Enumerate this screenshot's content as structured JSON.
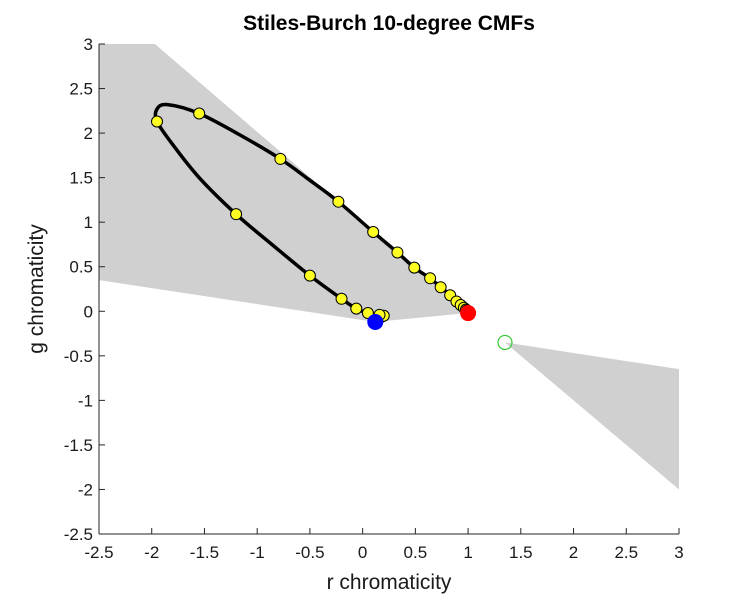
{
  "chart_data": {
    "type": "scatter",
    "title": "Stiles-Burch 10-degree CMFs",
    "xlabel": "r chromaticity",
    "ylabel": "g chromaticity",
    "xlim": [
      -2.5,
      3
    ],
    "ylim": [
      -2.5,
      3
    ],
    "xticks": [
      "-2.5",
      "-2",
      "-1.5",
      "-1",
      "-0.5",
      "0",
      "0.5",
      "1",
      "1.5",
      "2",
      "2.5",
      "3"
    ],
    "yticks": [
      "3",
      "2.5",
      "2",
      "1.5",
      "1",
      "0.5",
      "0",
      "-0.5",
      "-1",
      "-1.5",
      "-2",
      "-2.5"
    ],
    "grid": false,
    "colors": {
      "locus": "#000000",
      "markers": "#ffff22",
      "red_primary": "#ff0000",
      "blue_primary": "#0000ff",
      "white_point": "#33cc33",
      "shaded_region": "#d0d0d0"
    },
    "series": [
      {
        "values": [
          [
            0.18,
            -0.06
          ],
          [
            0.2,
            -0.05
          ],
          [
            0.16,
            -0.04
          ],
          [
            0.05,
            -0.02
          ],
          [
            -0.06,
            0.03
          ],
          [
            -0.2,
            0.14
          ],
          [
            -0.5,
            0.4
          ],
          [
            -1.2,
            1.09
          ],
          [
            -1.95,
            2.13
          ],
          [
            -1.55,
            2.22
          ],
          [
            -0.78,
            1.71
          ],
          [
            -0.23,
            1.23
          ],
          [
            0.1,
            0.89
          ],
          [
            0.33,
            0.66
          ],
          [
            0.49,
            0.49
          ],
          [
            0.64,
            0.37
          ],
          [
            0.74,
            0.27
          ],
          [
            0.83,
            0.18
          ],
          [
            0.89,
            0.11
          ],
          [
            0.93,
            0.07
          ],
          [
            0.96,
            0.04
          ],
          [
            0.98,
            0.02
          ],
          [
            0.99,
            0.01
          ]
        ]
      },
      {
        "values": [
          [
            1.0,
            -0.02
          ]
        ]
      },
      {
        "values": [
          [
            0.12,
            -0.12
          ]
        ]
      },
      {
        "values": [
          [
            1.35,
            -0.35
          ]
        ]
      }
    ],
    "locus_curve": [
      [
        0.12,
        -0.12
      ],
      [
        0.2,
        -0.05
      ],
      [
        0.16,
        -0.04
      ],
      [
        0.05,
        -0.02
      ],
      [
        -0.06,
        0.03
      ],
      [
        -0.2,
        0.14
      ],
      [
        -0.5,
        0.4
      ],
      [
        -0.85,
        0.74
      ],
      [
        -1.2,
        1.09
      ],
      [
        -1.55,
        1.5
      ],
      [
        -1.8,
        1.87
      ],
      [
        -1.95,
        2.13
      ],
      [
        -1.95,
        2.27
      ],
      [
        -1.85,
        2.32
      ],
      [
        -1.55,
        2.22
      ],
      [
        -1.15,
        1.97
      ],
      [
        -0.78,
        1.71
      ],
      [
        -0.5,
        1.47
      ],
      [
        -0.23,
        1.23
      ],
      [
        0.1,
        0.89
      ],
      [
        0.33,
        0.66
      ],
      [
        0.49,
        0.49
      ],
      [
        0.64,
        0.37
      ],
      [
        0.74,
        0.27
      ],
      [
        0.83,
        0.18
      ],
      [
        0.89,
        0.11
      ],
      [
        0.93,
        0.07
      ],
      [
        0.96,
        0.04
      ],
      [
        0.98,
        0.02
      ],
      [
        1.0,
        -0.02
      ]
    ],
    "shaded_regions": [
      [
        [
          -2.5,
          0.35
        ],
        [
          -2.5,
          3.0
        ],
        [
          -1.97,
          3.0
        ],
        [
          1.0,
          -0.02
        ],
        [
          0.12,
          -0.12
        ]
      ],
      [
        [
          1.35,
          -0.35
        ],
        [
          3.0,
          -0.65
        ],
        [
          3.0,
          -2.0
        ]
      ]
    ]
  }
}
